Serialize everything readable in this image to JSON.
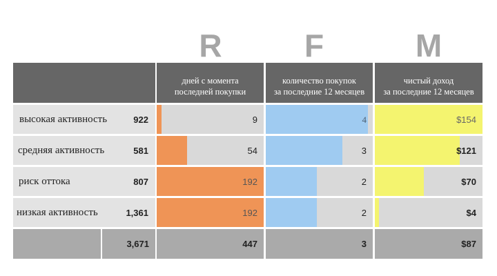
{
  "letters": {
    "r": "R",
    "f": "F",
    "m": "M"
  },
  "headers": {
    "recency": [
      "дней с момента",
      "последней покупки"
    ],
    "frequency": [
      "количество покупок",
      "за последние 12 месяцев"
    ],
    "monetary": [
      "чистый доход",
      "за последние 12 месяцев"
    ]
  },
  "colors": {
    "header_bg": "#666666",
    "cell_bg": "#d9d9d9",
    "segment_bg": "#e3e3e3",
    "total_bg": "#aaaaaa",
    "recency_bar": "#ef9456",
    "frequency_bar": "#9fcbf1",
    "monetary_bar": "#f4f46f"
  },
  "segments": [
    {
      "name": "высокая активность",
      "count": "922"
    },
    {
      "name": "средняя активность",
      "count": "581"
    },
    {
      "name": "риск оттока",
      "count": "807"
    },
    {
      "name": "низкая активность",
      "count": "1,361"
    }
  ],
  "totals": {
    "count": "3,671",
    "recency": "447",
    "frequency": "3",
    "monetary": "$87"
  },
  "chart_data": {
    "type": "table",
    "title": "RFM",
    "columns": [
      "R",
      "F",
      "M"
    ],
    "column_labels": [
      "дней с момента последней покупки",
      "количество покупок за последние 12 месяцев",
      "чистый доход за последние 12 месяцев"
    ],
    "categories": [
      "высокая активность",
      "средняя активность",
      "риск оттока",
      "низкая активность"
    ],
    "series": [
      {
        "name": "R",
        "values": [
          9,
          54,
          192,
          192
        ],
        "labels": [
          "9",
          "54",
          "192",
          "192"
        ],
        "max": 192
      },
      {
        "name": "F",
        "values": [
          4,
          3,
          2,
          2
        ],
        "labels": [
          "4",
          "3",
          "2",
          "2"
        ],
        "max": 4.2
      },
      {
        "name": "M",
        "values": [
          154,
          121,
          70,
          4
        ],
        "labels": [
          "$154",
          "$121",
          "$70",
          "$4"
        ],
        "max": 154
      }
    ]
  }
}
